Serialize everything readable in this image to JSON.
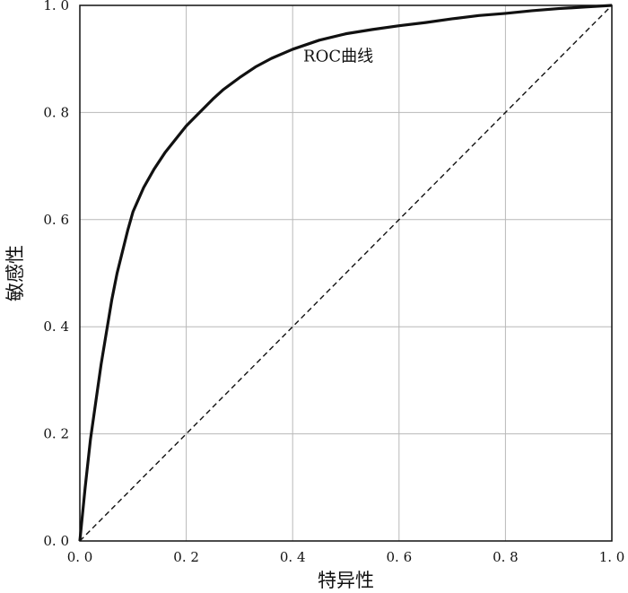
{
  "chart_data": {
    "type": "line",
    "xlabel": "特异性",
    "ylabel": "敏感性",
    "xlim": [
      0,
      1
    ],
    "ylim": [
      0,
      1
    ],
    "xticks": [
      0,
      0.2,
      0.4,
      0.6,
      0.8,
      1.0
    ],
    "yticks": [
      0,
      0.2,
      0.4,
      0.6,
      0.8,
      1.0
    ],
    "xtick_labels": [
      "0. 0",
      "0. 2",
      "0. 4",
      "0. 6",
      "0. 8",
      "1. 0"
    ],
    "ytick_labels": [
      "0. 0",
      "0. 2",
      "0. 4",
      "0. 6",
      "0. 8",
      "1. 0"
    ],
    "grid": true,
    "legend": "none",
    "annotations": [
      {
        "text": "ROC曲线",
        "x": 0.42,
        "y": 0.895
      }
    ],
    "series": [
      {
        "style": "solid",
        "color": "#111111",
        "points": [
          [
            0.0,
            0.0
          ],
          [
            0.005,
            0.05
          ],
          [
            0.01,
            0.1
          ],
          [
            0.02,
            0.19
          ],
          [
            0.03,
            0.26
          ],
          [
            0.04,
            0.33
          ],
          [
            0.05,
            0.39
          ],
          [
            0.06,
            0.45
          ],
          [
            0.07,
            0.5
          ],
          [
            0.08,
            0.54
          ],
          [
            0.09,
            0.58
          ],
          [
            0.1,
            0.615
          ],
          [
            0.12,
            0.66
          ],
          [
            0.14,
            0.695
          ],
          [
            0.16,
            0.725
          ],
          [
            0.18,
            0.75
          ],
          [
            0.2,
            0.775
          ],
          [
            0.22,
            0.795
          ],
          [
            0.25,
            0.825
          ],
          [
            0.27,
            0.843
          ],
          [
            0.3,
            0.865
          ],
          [
            0.33,
            0.885
          ],
          [
            0.36,
            0.901
          ],
          [
            0.4,
            0.918
          ],
          [
            0.45,
            0.935
          ],
          [
            0.5,
            0.947
          ],
          [
            0.55,
            0.955
          ],
          [
            0.6,
            0.962
          ],
          [
            0.65,
            0.968
          ],
          [
            0.7,
            0.975
          ],
          [
            0.75,
            0.981
          ],
          [
            0.8,
            0.985
          ],
          [
            0.85,
            0.99
          ],
          [
            0.9,
            0.994
          ],
          [
            0.95,
            0.997
          ],
          [
            1.0,
            1.0
          ]
        ]
      },
      {
        "style": "dashed",
        "color": "#111111",
        "points": [
          [
            0,
            0
          ],
          [
            1,
            1
          ]
        ]
      }
    ]
  }
}
